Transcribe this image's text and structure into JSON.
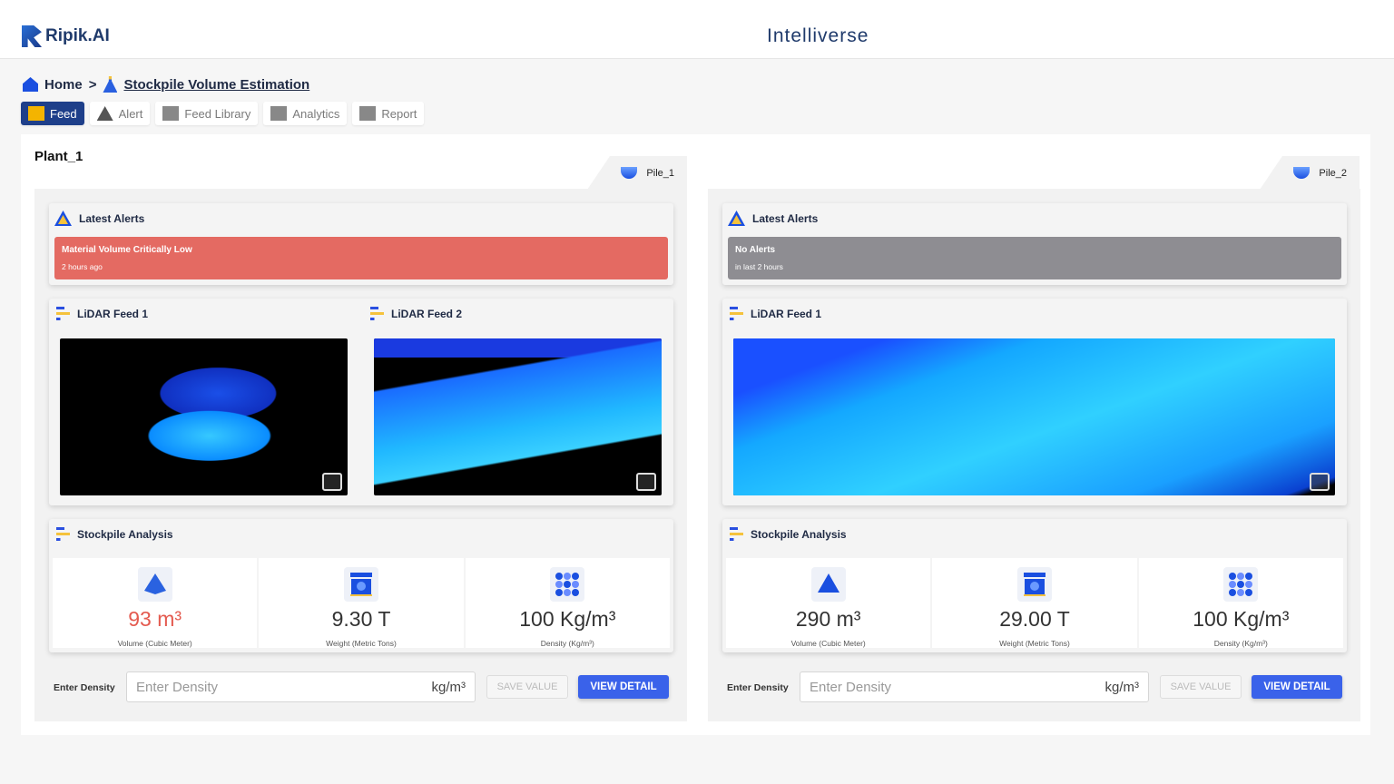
{
  "header": {
    "logo_text": "Ripik.AI",
    "brand": "Intelliverse"
  },
  "breadcrumb": {
    "home": "Home",
    "separator": ">",
    "current": "Stockpile Volume Estimation"
  },
  "tabs": [
    {
      "label": "Feed",
      "active": true
    },
    {
      "label": "Alert"
    },
    {
      "label": "Feed Library"
    },
    {
      "label": "Analytics"
    },
    {
      "label": "Report"
    }
  ],
  "plant": "Plant_1",
  "piles": [
    {
      "name": "Pile_1",
      "alerts_title": "Latest Alerts",
      "alert": {
        "title": "Material Volume Critically Low",
        "time": "2 hours ago",
        "color": "#e46a62"
      },
      "feeds": [
        "LiDAR Feed 1",
        "LiDAR Feed 2"
      ],
      "analysis_title": "Stockpile Analysis",
      "stats": [
        {
          "value": "93 m³",
          "label": "Volume (Cubic Meter)",
          "color": "#e45a4f"
        },
        {
          "value": "9.30 T",
          "label": "Weight (Metric Tons)"
        },
        {
          "value": "100 Kg/m³",
          "label": "Density (Kg/m³)"
        }
      ],
      "density": {
        "label": "Enter Density",
        "placeholder": "Enter Density",
        "unit": "kg/m³",
        "save": "SAVE VALUE",
        "view": "VIEW DETAIL"
      }
    },
    {
      "name": "Pile_2",
      "alerts_title": "Latest Alerts",
      "alert": {
        "title": "No Alerts",
        "time": "in last 2 hours",
        "color": "#8e8d92"
      },
      "feeds": [
        "LiDAR Feed 1"
      ],
      "analysis_title": "Stockpile Analysis",
      "stats": [
        {
          "value": "290 m³",
          "label": "Volume (Cubic Meter)"
        },
        {
          "value": "29.00 T",
          "label": "Weight (Metric Tons)"
        },
        {
          "value": "100 Kg/m³",
          "label": "Density (Kg/m³)"
        }
      ],
      "density": {
        "label": "Enter Density",
        "placeholder": "Enter Density",
        "unit": "kg/m³",
        "save": "SAVE VALUE",
        "view": "VIEW DETAIL"
      }
    }
  ]
}
